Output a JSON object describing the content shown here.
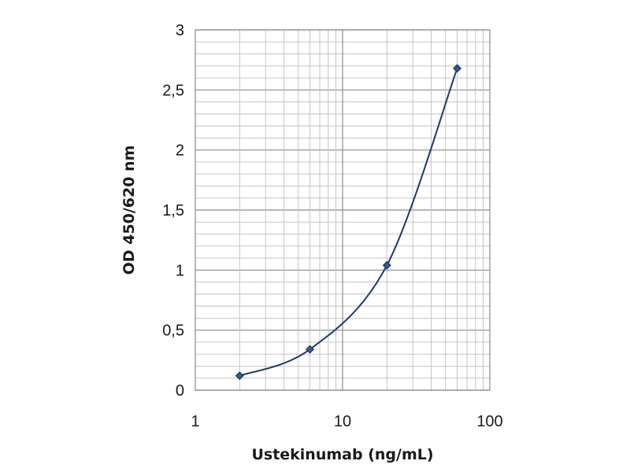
{
  "chart_data": {
    "type": "line",
    "title": "",
    "xlabel": "Ustekinumab (ng/mL)",
    "ylabel": "OD 450/620 nm",
    "x_scale": "log",
    "xlim": [
      1,
      100
    ],
    "ylim": [
      0,
      3
    ],
    "grid": true,
    "x_ticks": [
      {
        "value": 1,
        "label": "1"
      },
      {
        "value": 10,
        "label": "10"
      },
      {
        "value": 100,
        "label": "100"
      }
    ],
    "y_ticks": [
      {
        "value": 0,
        "label": "0"
      },
      {
        "value": 0.5,
        "label": "0,5"
      },
      {
        "value": 1,
        "label": "1"
      },
      {
        "value": 1.5,
        "label": "1,5"
      },
      {
        "value": 2,
        "label": "2"
      },
      {
        "value": 2.5,
        "label": "2,5"
      },
      {
        "value": 3,
        "label": "3"
      }
    ],
    "series": [
      {
        "x": [
          2,
          6,
          20,
          60
        ],
        "y": [
          0.12,
          0.34,
          1.04,
          2.68
        ],
        "color": "#1f3864",
        "marker_color": "#2e5c9e"
      }
    ]
  }
}
